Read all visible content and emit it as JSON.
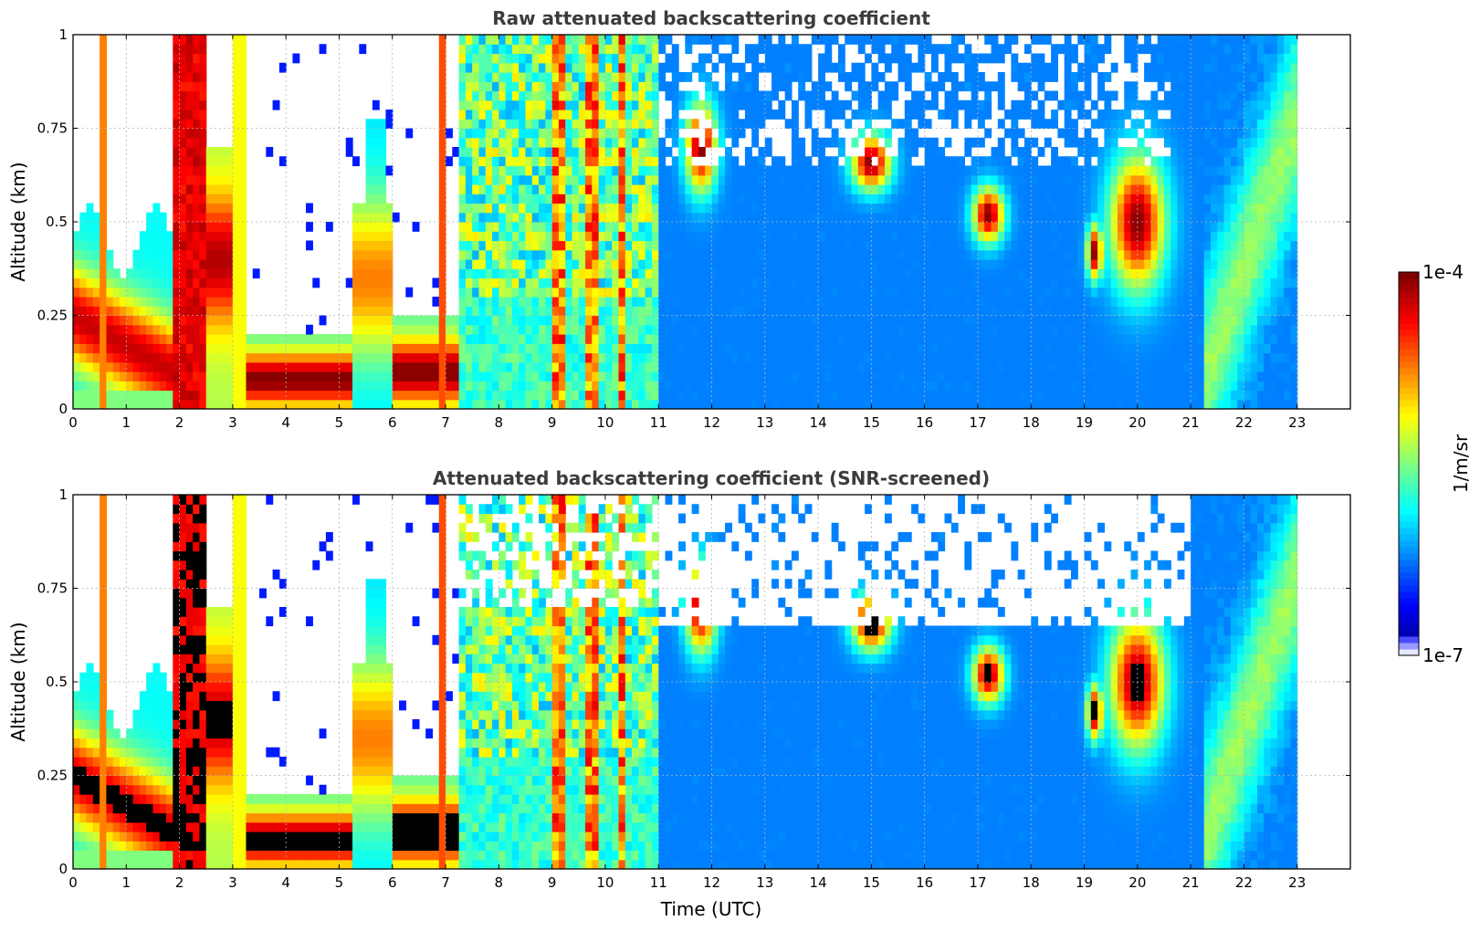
{
  "chart_data": [
    {
      "type": "heatmap",
      "title": "Raw attenuated backscattering coefficient",
      "xlabel": "",
      "ylabel": "Altitude (km)",
      "xlim": [
        0,
        24
      ],
      "ylim": [
        0,
        1
      ],
      "xticks": [
        "0",
        "1",
        "2",
        "3",
        "4",
        "5",
        "6",
        "7",
        "8",
        "9",
        "10",
        "11",
        "12",
        "13",
        "14",
        "15",
        "16",
        "17",
        "18",
        "19",
        "20",
        "21",
        "22",
        "23"
      ],
      "yticks": [
        "0",
        "0.25",
        "0.5",
        "0.75",
        "1"
      ],
      "grid": true,
      "data_end_hour": 23,
      "features": [
        {
          "t0": 0.0,
          "t1": 1.9,
          "layer_top_km": 0.45,
          "core_km": [
            0.05,
            0.35
          ],
          "level": "high"
        },
        {
          "t0": 1.9,
          "t1": 2.5,
          "layer_top_km": 1.0,
          "core_km": [
            0.0,
            1.0
          ],
          "level": "very-high"
        },
        {
          "t0": 3.3,
          "t1": 5.3,
          "layer_top_km": 0.2,
          "core_km": [
            0.03,
            0.12
          ],
          "level": "very-high"
        },
        {
          "t0": 6.0,
          "t1": 7.2,
          "layer_top_km": 0.25,
          "core_km": [
            0.05,
            0.18
          ],
          "level": "very-high"
        },
        {
          "t0": 7.5,
          "t1": 11.0,
          "layer_top_km": 1.0,
          "core_km": [
            0.3,
            0.8
          ],
          "level": "medium-high"
        },
        {
          "t0": 11.0,
          "t1": 23.0,
          "layer_top_km": 1.0,
          "core_km": [
            0.0,
            0.65
          ],
          "level": "low"
        },
        {
          "t0": 14.8,
          "t1": 15.3,
          "layer_top_km": 0.75,
          "core_km": [
            0.6,
            0.72
          ],
          "level": "very-high"
        },
        {
          "t0": 17.0,
          "t1": 17.4,
          "layer_top_km": 0.6,
          "core_km": [
            0.47,
            0.57
          ],
          "level": "very-high"
        },
        {
          "t0": 19.1,
          "t1": 19.3,
          "layer_top_km": 0.5,
          "core_km": [
            0.37,
            0.47
          ],
          "level": "very-high"
        },
        {
          "t0": 19.8,
          "t1": 20.5,
          "layer_top_km": 0.65,
          "core_km": [
            0.3,
            0.6
          ],
          "level": "very-high"
        }
      ]
    },
    {
      "type": "heatmap",
      "title": "Attenuated backscattering coefficient (SNR-screened)",
      "xlabel": "Time (UTC)",
      "ylabel": "Altitude (km)",
      "xlim": [
        0,
        24
      ],
      "ylim": [
        0,
        1
      ],
      "xticks": [
        "0",
        "1",
        "2",
        "3",
        "4",
        "5",
        "6",
        "7",
        "8",
        "9",
        "10",
        "11",
        "12",
        "13",
        "14",
        "15",
        "16",
        "17",
        "18",
        "19",
        "20",
        "21",
        "22",
        "23"
      ],
      "yticks": [
        "0",
        "0.25",
        "0.5",
        "0.75",
        "1"
      ],
      "grid": true,
      "data_end_hour": 23,
      "saturated_color": "#000000",
      "screened_top_km": 0.65
    }
  ],
  "colorbar": {
    "label": "1/m/sr",
    "max_label": "1e-4",
    "min_label": "1e-7",
    "scale": "log",
    "colormap": "jet"
  },
  "colors": {
    "title": "#3c3c3c",
    "grid": "#b4b4b4",
    "saturated": "#000000"
  }
}
